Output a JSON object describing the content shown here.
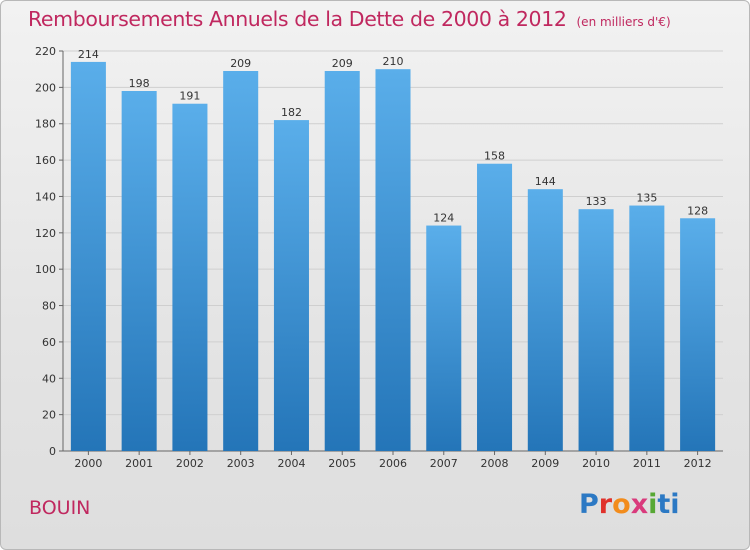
{
  "chart_data": {
    "type": "bar",
    "title": "Remboursements Annuels de la Dette de 2000 à 2012",
    "unit": "(en milliers d'€)",
    "categories": [
      "2000",
      "2001",
      "2002",
      "2003",
      "2004",
      "2005",
      "2006",
      "2007",
      "2008",
      "2009",
      "2010",
      "2011",
      "2012"
    ],
    "values": [
      214,
      198,
      191,
      209,
      182,
      209,
      210,
      124,
      158,
      144,
      133,
      135,
      128
    ],
    "ylim": [
      0,
      220
    ],
    "yticks": [
      0,
      20,
      40,
      60,
      80,
      100,
      120,
      140,
      160,
      180,
      200,
      220
    ],
    "grid": true,
    "colors": {
      "bar_top": "#5aaeea",
      "bar_bottom": "#2475b8",
      "title": "#c0285f"
    }
  },
  "commune": "BOUIN",
  "logo": {
    "text": "Proxiti",
    "letter_colors": [
      "#2c79c4",
      "#e0312b",
      "#f28c1c",
      "#d93a7c",
      "#57a834",
      "#2c79c4",
      "#2c79c4"
    ]
  }
}
